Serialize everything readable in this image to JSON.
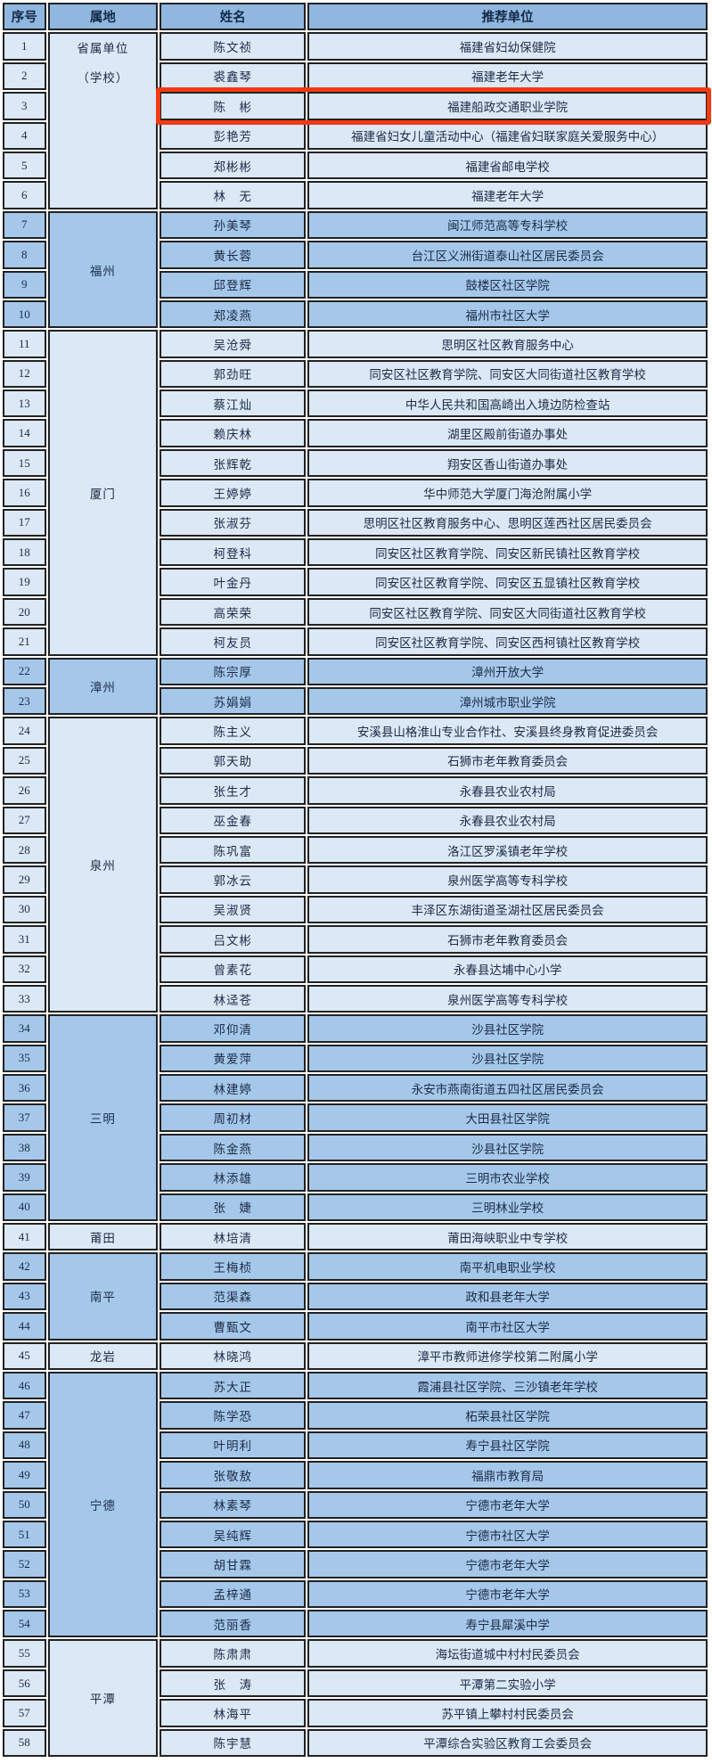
{
  "table": {
    "headers": [
      "序号",
      "属地",
      "姓名",
      "推荐单位"
    ],
    "highlight": {
      "row_number": 3,
      "color": "#f23a14"
    },
    "groups": [
      {
        "region": "省属单位（学校）",
        "region_lines": [
          "省属单位",
          "（学校）"
        ],
        "shade": "light",
        "rows": [
          {
            "no": 1,
            "name": "陈文祯",
            "unit": "福建省妇幼保健院"
          },
          {
            "no": 2,
            "name": "裘鑫琴",
            "unit": "福建老年大学"
          },
          {
            "no": 3,
            "name": "陈　彬",
            "unit": "福建船政交通职业学院"
          },
          {
            "no": 4,
            "name": "彭艳芳",
            "unit": "福建省妇女儿童活动中心（福建省妇联家庭关爱服务中心）"
          },
          {
            "no": 5,
            "name": "郑彬彬",
            "unit": "福建省邮电学校"
          },
          {
            "no": 6,
            "name": "林　无",
            "unit": "福建老年大学"
          }
        ]
      },
      {
        "region": "福州",
        "shade": "dark",
        "rows": [
          {
            "no": 7,
            "name": "孙美琴",
            "unit": "闽江师范高等专科学校"
          },
          {
            "no": 8,
            "name": "黄长蓉",
            "unit": "台江区义洲街道泰山社区居民委员会"
          },
          {
            "no": 9,
            "name": "邱登辉",
            "unit": "鼓楼区社区学院"
          },
          {
            "no": 10,
            "name": "郑凌燕",
            "unit": "福州市社区大学"
          }
        ]
      },
      {
        "region": "厦门",
        "shade": "light",
        "rows": [
          {
            "no": 11,
            "name": "吴沧舜",
            "unit": "思明区社区教育服务中心"
          },
          {
            "no": 12,
            "name": "郭劲旺",
            "unit": "同安区社区教育学院、同安区大同街道社区教育学校"
          },
          {
            "no": 13,
            "name": "蔡江灿",
            "unit": "中华人民共和国高崎出入境边防检查站"
          },
          {
            "no": 14,
            "name": "赖庆林",
            "unit": "湖里区殿前街道办事处"
          },
          {
            "no": 15,
            "name": "张辉乾",
            "unit": "翔安区香山街道办事处"
          },
          {
            "no": 16,
            "name": "王婷婷",
            "unit": "华中师范大学厦门海沧附属小学"
          },
          {
            "no": 17,
            "name": "张淑芬",
            "unit": "思明区社区教育服务中心、思明区莲西社区居民委员会"
          },
          {
            "no": 18,
            "name": "柯登科",
            "unit": "同安区社区教育学院、同安区新民镇社区教育学校"
          },
          {
            "no": 19,
            "name": "叶金丹",
            "unit": "同安区社区教育学院、同安区五显镇社区教育学校"
          },
          {
            "no": 20,
            "name": "高荣荣",
            "unit": "同安区社区教育学院、同安区大同街道社区教育学校"
          },
          {
            "no": 21,
            "name": "柯友员",
            "unit": "同安区社区教育学院、同安区西柯镇社区教育学校"
          }
        ]
      },
      {
        "region": "漳州",
        "shade": "dark",
        "rows": [
          {
            "no": 22,
            "name": "陈宗厚",
            "unit": "漳州开放大学"
          },
          {
            "no": 23,
            "name": "苏娟娟",
            "unit": "漳州城市职业学院"
          }
        ]
      },
      {
        "region": "泉州",
        "shade": "light",
        "rows": [
          {
            "no": 24,
            "name": "陈主义",
            "unit": "安溪县山格淮山专业合作社、安溪县终身教育促进委员会"
          },
          {
            "no": 25,
            "name": "郭天助",
            "unit": "石狮市老年教育委员会"
          },
          {
            "no": 26,
            "name": "张生才",
            "unit": "永春县农业农村局"
          },
          {
            "no": 27,
            "name": "巫金春",
            "unit": "永春县农业农村局"
          },
          {
            "no": 28,
            "name": "陈巩富",
            "unit": "洛江区罗溪镇老年学校"
          },
          {
            "no": 29,
            "name": "郭冰云",
            "unit": "泉州医学高等专科学校"
          },
          {
            "no": 30,
            "name": "吴淑贤",
            "unit": "丰泽区东湖街道圣湖社区居民委员会"
          },
          {
            "no": 31,
            "name": "吕文彬",
            "unit": "石狮市老年教育委员会"
          },
          {
            "no": 32,
            "name": "曾素花",
            "unit": "永春县达埔中心小学"
          },
          {
            "no": 33,
            "name": "林迳苍",
            "unit": "泉州医学高等专科学校"
          }
        ]
      },
      {
        "region": "三明",
        "shade": "dark",
        "rows": [
          {
            "no": 34,
            "name": "邓仰清",
            "unit": "沙县社区学院"
          },
          {
            "no": 35,
            "name": "黄爱萍",
            "unit": "沙县社区学院"
          },
          {
            "no": 36,
            "name": "林建婷",
            "unit": "永安市燕南街道五四社区居民委员会"
          },
          {
            "no": 37,
            "name": "周初材",
            "unit": "大田县社区学院"
          },
          {
            "no": 38,
            "name": "陈金燕",
            "unit": "沙县社区学院"
          },
          {
            "no": 39,
            "name": "林添雄",
            "unit": "三明市农业学校"
          },
          {
            "no": 40,
            "name": "张　婕",
            "unit": "三明林业学校"
          }
        ]
      },
      {
        "region": "莆田",
        "shade": "light",
        "rows": [
          {
            "no": 41,
            "name": "林培清",
            "unit": "莆田海峡职业中专学校"
          }
        ]
      },
      {
        "region": "南平",
        "shade": "dark",
        "rows": [
          {
            "no": 42,
            "name": "王梅桢",
            "unit": "南平机电职业学校"
          },
          {
            "no": 43,
            "name": "范渠森",
            "unit": "政和县老年大学"
          },
          {
            "no": 44,
            "name": "曹甄文",
            "unit": "南平市社区大学"
          }
        ]
      },
      {
        "region": "龙岩",
        "shade": "light",
        "rows": [
          {
            "no": 45,
            "name": "林晓鸿",
            "unit": "漳平市教师进修学校第二附属小学"
          }
        ]
      },
      {
        "region": "宁德",
        "shade": "dark",
        "rows": [
          {
            "no": 46,
            "name": "苏大正",
            "unit": "霞浦县社区学院、三沙镇老年学校"
          },
          {
            "no": 47,
            "name": "陈学恐",
            "unit": "柘荣县社区学院"
          },
          {
            "no": 48,
            "name": "叶明利",
            "unit": "寿宁县社区学院"
          },
          {
            "no": 49,
            "name": "张敬敖",
            "unit": "福鼎市教育局"
          },
          {
            "no": 50,
            "name": "林素琴",
            "unit": "宁德市老年大学"
          },
          {
            "no": 51,
            "name": "吴纯辉",
            "unit": "宁德市社区大学"
          },
          {
            "no": 52,
            "name": "胡甘霖",
            "unit": "宁德市老年大学"
          },
          {
            "no": 53,
            "name": "孟梓通",
            "unit": "宁德市老年大学"
          },
          {
            "no": 54,
            "name": "范丽香",
            "unit": "寿宁县犀溪中学"
          }
        ]
      },
      {
        "region": "平潭",
        "shade": "light",
        "rows": [
          {
            "no": 55,
            "name": "陈肃肃",
            "unit": "海坛街道城中村村民委员会"
          },
          {
            "no": 56,
            "name": "张　涛",
            "unit": "平潭第二实验小学"
          },
          {
            "no": 57,
            "name": "林海平",
            "unit": "苏平镇上攀村村民委员会"
          },
          {
            "no": 58,
            "name": "陈宇慧",
            "unit": "平潭综合实验区教育工会委员会"
          }
        ]
      }
    ]
  }
}
